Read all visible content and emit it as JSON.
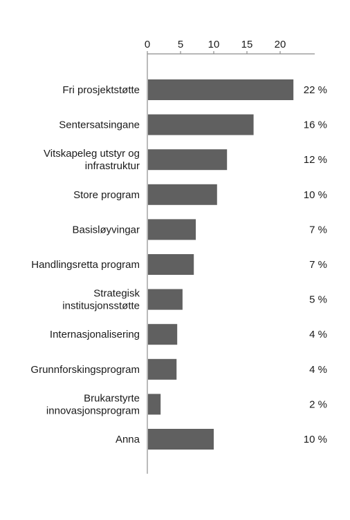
{
  "chart_data": {
    "type": "bar",
    "orientation": "horizontal",
    "categories": [
      [
        "Fri prosjektstøtte"
      ],
      [
        "Sentersatsingane"
      ],
      [
        "Vitskapeleg utstyr og",
        "infrastruktur"
      ],
      [
        "Store program"
      ],
      [
        "Basisløyvingar"
      ],
      [
        "Handlingsretta program"
      ],
      [
        "Strategisk",
        "institusjonsstøtte"
      ],
      [
        "Internasjonalisering"
      ],
      [
        "Grunnforskingsprogram"
      ],
      [
        "Brukarstyrte",
        "innovasjonsprogram"
      ],
      [
        "Anna"
      ]
    ],
    "values": [
      22,
      16,
      12,
      10.5,
      7.3,
      7,
      5.3,
      4.5,
      4.4,
      2,
      10
    ],
    "value_labels": [
      "22 %",
      "16 %",
      "12 %",
      "10 %",
      "7 %",
      "7 %",
      "5 %",
      "4 %",
      "4 %",
      "2 %",
      "10 %"
    ],
    "xticks": [
      "0",
      "5",
      "10",
      "15",
      "20"
    ],
    "xtick_values": [
      0,
      5,
      10,
      15,
      20
    ],
    "xlim": [
      0,
      25
    ],
    "axis_position": "top",
    "grid": false,
    "bar_color": "#606060",
    "axis_color": "#8c8c8c",
    "title": "",
    "xlabel": "",
    "ylabel": ""
  }
}
